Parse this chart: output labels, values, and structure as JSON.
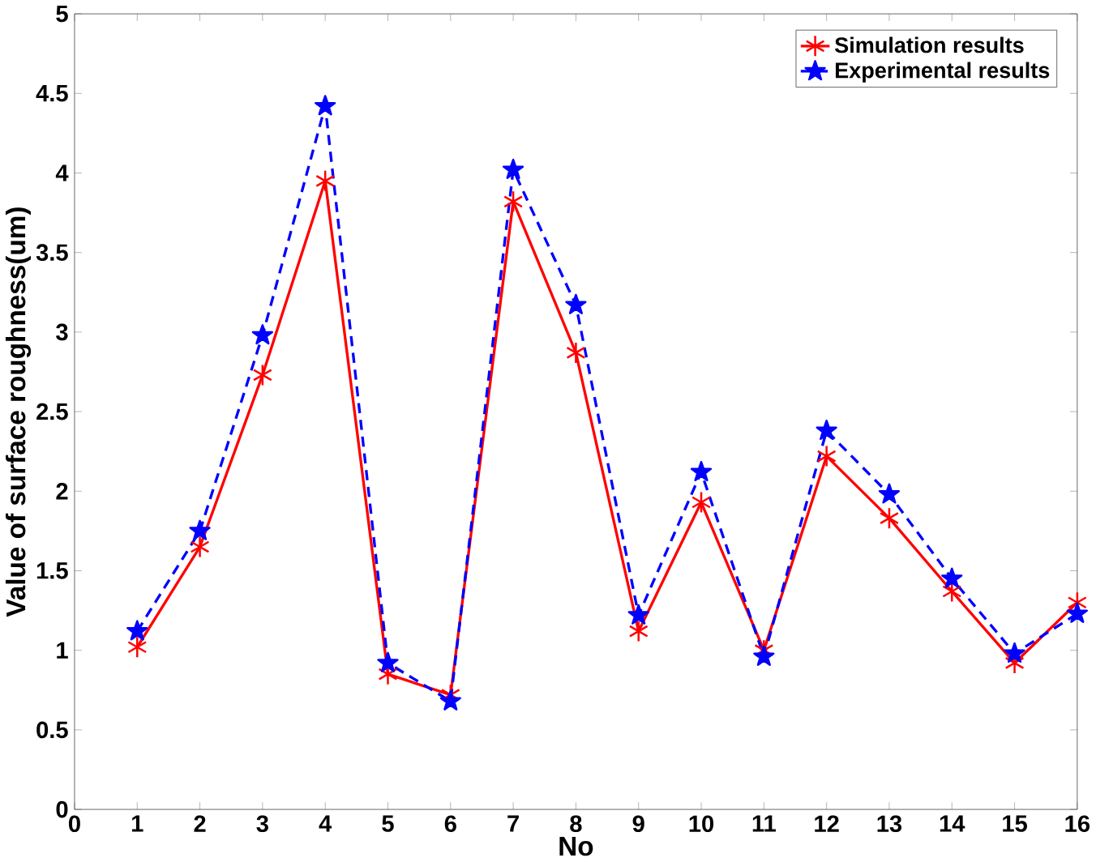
{
  "chart_data": {
    "type": "line",
    "xlabel": "No",
    "ylabel": "Value of surface roughness(um)",
    "x": [
      1,
      2,
      3,
      4,
      5,
      6,
      7,
      8,
      9,
      10,
      11,
      12,
      13,
      14,
      15,
      16
    ],
    "series": [
      {
        "name": "Simulation results",
        "color": "#ff0000",
        "marker": "cross",
        "line_style": "solid",
        "values": [
          1.02,
          1.65,
          2.73,
          3.95,
          0.85,
          0.72,
          3.82,
          2.87,
          1.12,
          1.93,
          1.0,
          2.22,
          1.83,
          1.37,
          0.92,
          1.3
        ]
      },
      {
        "name": "Experimental results",
        "color": "#0000ff",
        "marker": "star",
        "line_style": "dashed",
        "values": [
          1.12,
          1.75,
          2.98,
          4.42,
          0.92,
          0.68,
          4.02,
          3.17,
          1.22,
          2.12,
          0.96,
          2.38,
          1.98,
          1.45,
          0.98,
          1.23
        ]
      }
    ],
    "xlim": [
      0,
      16
    ],
    "ylim": [
      0,
      5
    ],
    "xticks": [
      0,
      1,
      2,
      3,
      4,
      5,
      6,
      7,
      8,
      9,
      10,
      11,
      12,
      13,
      14,
      15,
      16
    ],
    "yticks": [
      0,
      0.5,
      1,
      1.5,
      2,
      2.5,
      3,
      3.5,
      4,
      4.5,
      5
    ],
    "grid": false,
    "legend": "top right"
  }
}
